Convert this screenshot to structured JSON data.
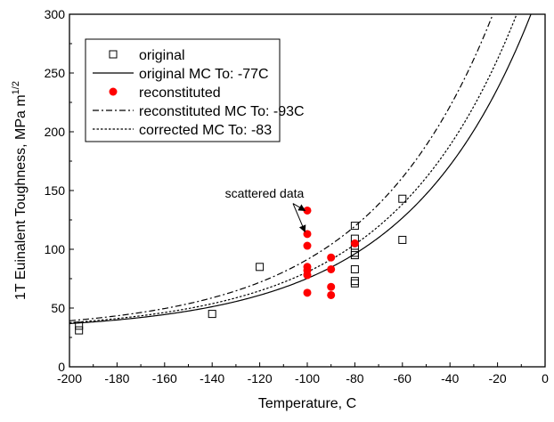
{
  "chart_data": {
    "type": "scatter",
    "xlabel": "Temperature, C",
    "ylabel": "1T Euinalent Toughness, MPa m",
    "ylabel_superscript": "1/2",
    "xlim": [
      -200,
      0
    ],
    "ylim": [
      0,
      300
    ],
    "x_ticks": [
      -200,
      -180,
      -160,
      -140,
      -120,
      -100,
      -80,
      -60,
      -40,
      -20,
      0
    ],
    "y_ticks": [
      0,
      50,
      100,
      150,
      200,
      250,
      300
    ],
    "grid": false,
    "legend_position": "top-left",
    "series": [
      {
        "name": "original",
        "kind": "scatter",
        "marker": "open-square",
        "color": "#000000",
        "points": [
          [
            -196,
            35
          ],
          [
            -196,
            31
          ],
          [
            -140,
            45
          ],
          [
            -120,
            85
          ],
          [
            -80,
            120
          ],
          [
            -80,
            109
          ],
          [
            -80,
            103
          ],
          [
            -80,
            97
          ],
          [
            -80,
            95
          ],
          [
            -80,
            83
          ],
          [
            -80,
            73
          ],
          [
            -80,
            71
          ],
          [
            -60,
            143
          ],
          [
            -60,
            108
          ]
        ]
      },
      {
        "name": "original MC To: -77C",
        "kind": "line",
        "style": "solid",
        "color": "#000000",
        "T0": -77
      },
      {
        "name": "reconstituted",
        "kind": "scatter",
        "marker": "filled-circle",
        "color": "#ff0000",
        "points": [
          [
            -100,
            133
          ],
          [
            -100,
            113
          ],
          [
            -100,
            103
          ],
          [
            -100,
            85
          ],
          [
            -100,
            82
          ],
          [
            -100,
            78
          ],
          [
            -100,
            63
          ],
          [
            -90,
            93
          ],
          [
            -90,
            83
          ],
          [
            -90,
            68
          ],
          [
            -90,
            61
          ],
          [
            -80,
            105
          ]
        ]
      },
      {
        "name": "reconstituted MC To: -93C",
        "kind": "line",
        "style": "dash-dot",
        "color": "#000000",
        "T0": -93
      },
      {
        "name": "corrected MC To: -83",
        "kind": "line",
        "style": "dotted",
        "color": "#000000",
        "T0": -83
      }
    ],
    "annotations": [
      {
        "text": "scattered data",
        "x": -118,
        "y": 144,
        "arrow_to": [
          [
            -101,
            133
          ],
          [
            -101,
            115
          ]
        ]
      }
    ]
  }
}
